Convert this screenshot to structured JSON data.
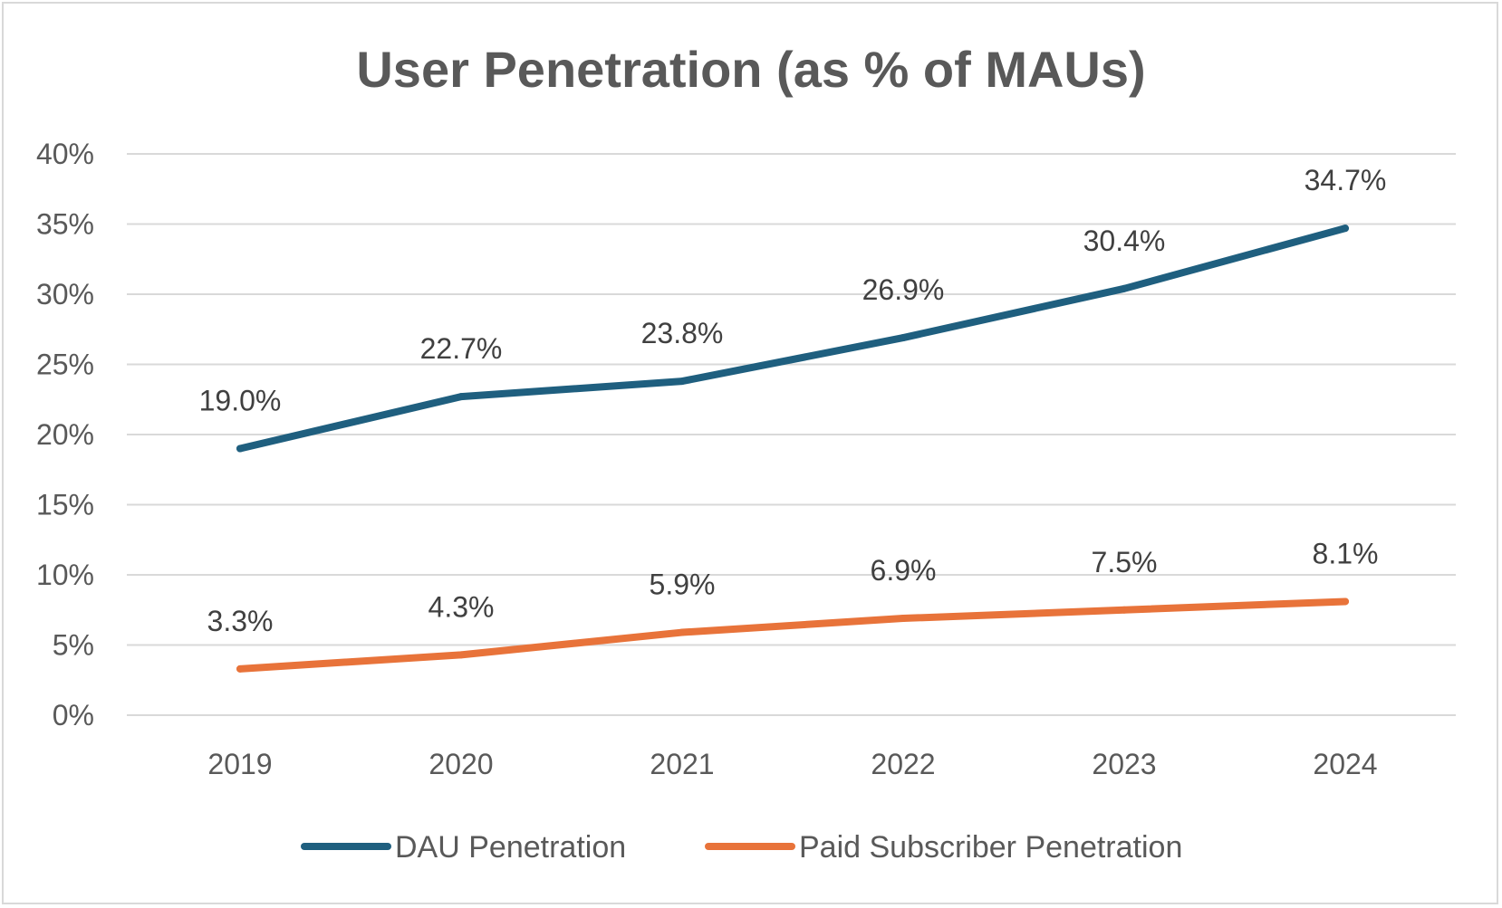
{
  "chart_data": {
    "type": "line",
    "title": "User Penetration (as % of MAUs)",
    "categories": [
      "2019",
      "2020",
      "2021",
      "2022",
      "2023",
      "2024"
    ],
    "ylim": [
      0,
      40
    ],
    "yticks": [
      0,
      5,
      10,
      15,
      20,
      25,
      30,
      35,
      40
    ],
    "ytick_labels": [
      "0%",
      "5%",
      "10%",
      "15%",
      "20%",
      "25%",
      "30%",
      "35%",
      "40%"
    ],
    "grid": true,
    "legend": "bottom",
    "series": [
      {
        "name": "DAU Penetration",
        "color": "#1f5f7f",
        "values": [
          19.0,
          22.7,
          23.8,
          26.9,
          30.4,
          34.7
        ],
        "labels": [
          "19.0%",
          "22.7%",
          "23.8%",
          "26.9%",
          "30.4%",
          "34.7%"
        ]
      },
      {
        "name": "Paid Subscriber Penetration",
        "color": "#e8733a",
        "values": [
          3.3,
          4.3,
          5.9,
          6.9,
          7.5,
          8.1
        ],
        "labels": [
          "3.3%",
          "4.3%",
          "5.9%",
          "6.9%",
          "7.5%",
          "8.1%"
        ]
      }
    ]
  }
}
